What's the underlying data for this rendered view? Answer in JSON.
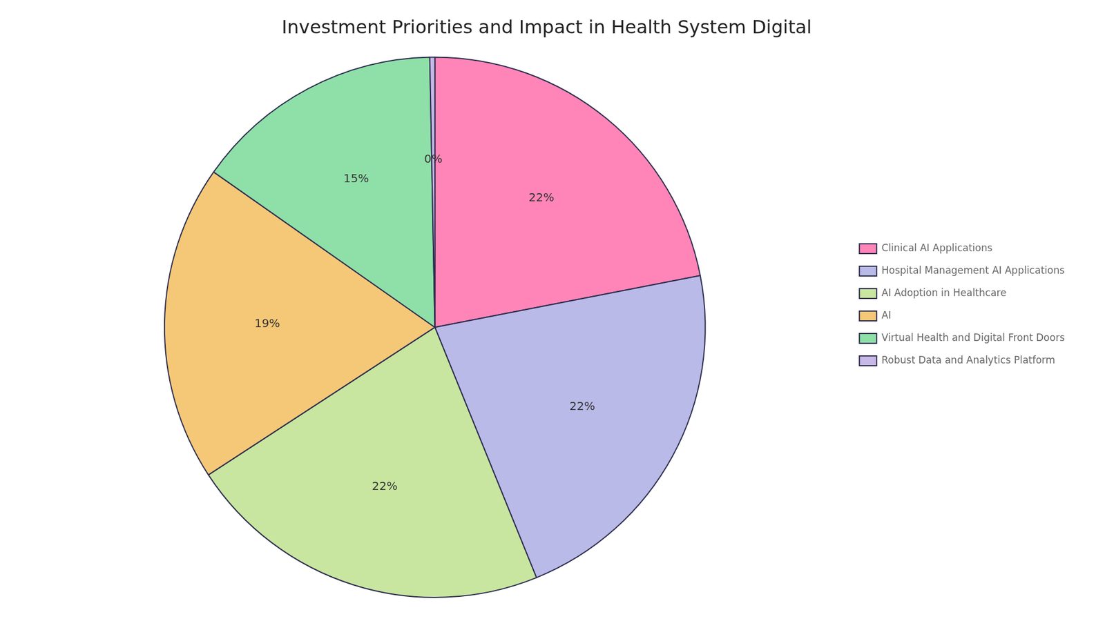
{
  "chart_data": {
    "type": "pie",
    "title": "Investment Priorities and Impact in Health System Digital",
    "categories": [
      "Clinical AI Applications",
      "Hospital Management AI Applications",
      "AI Adoption in Healthcare",
      "AI",
      "Virtual Health and Digital Front Doors",
      "Robust Data and Analytics Platform"
    ],
    "values": [
      22,
      22,
      22,
      19,
      15,
      0.3
    ],
    "value_labels": [
      "22%",
      "22%",
      "22%",
      "19%",
      "15%",
      "0%"
    ],
    "colors": [
      "#FF85B8",
      "#BABAE8",
      "#C8E6A0",
      "#F5C878",
      "#8EE0A8",
      "#C8B8E8"
    ],
    "legend": "right",
    "data_labels": true
  }
}
